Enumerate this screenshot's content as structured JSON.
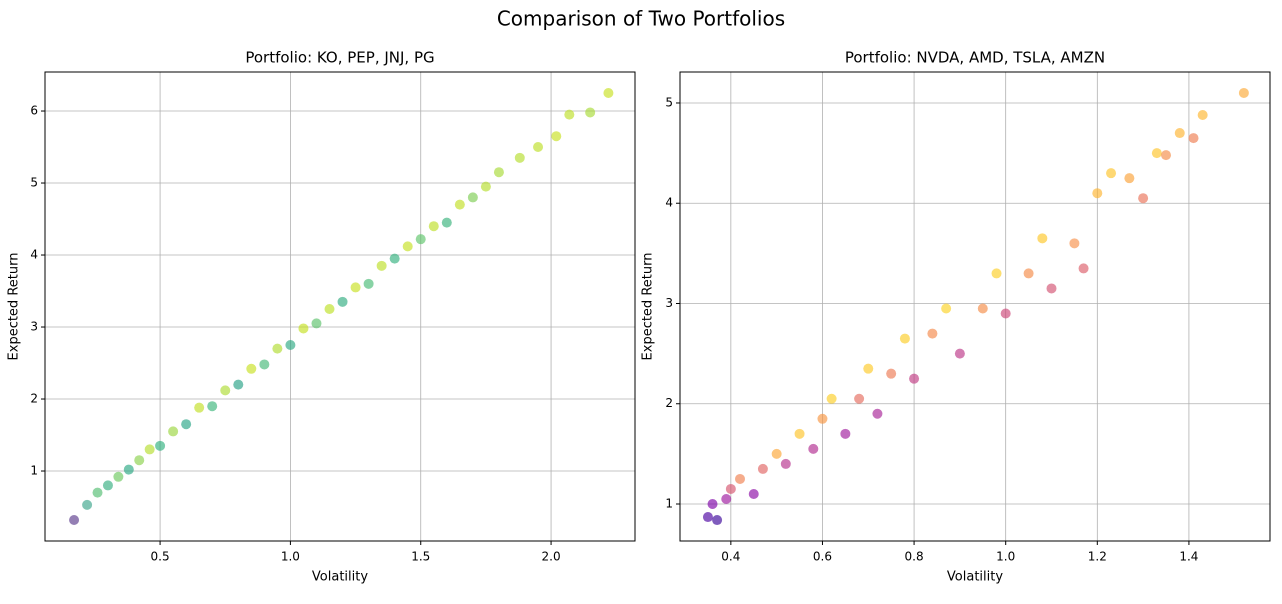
{
  "title": "Comparison of Two Portfolios",
  "chart_data": [
    {
      "type": "scatter",
      "title": "Portfolio: KO, PEP, JNJ, PG",
      "xlabel": "Volatility",
      "ylabel": "Expected Return",
      "x": [
        0.17,
        0.22,
        0.26,
        0.3,
        0.34,
        0.38,
        0.42,
        0.46,
        0.5,
        0.55,
        0.6,
        0.65,
        0.7,
        0.75,
        0.8,
        0.85,
        0.9,
        0.95,
        1.0,
        1.05,
        1.1,
        1.15,
        1.2,
        1.25,
        1.3,
        1.35,
        1.4,
        1.45,
        1.5,
        1.55,
        1.6,
        1.65,
        1.7,
        1.75,
        1.8,
        1.88,
        1.95,
        2.02,
        2.07,
        2.15,
        2.22
      ],
      "y": [
        0.32,
        0.53,
        0.7,
        0.8,
        0.92,
        1.02,
        1.15,
        1.3,
        1.35,
        1.55,
        1.65,
        1.88,
        1.9,
        2.12,
        2.2,
        2.42,
        2.48,
        2.7,
        2.75,
        2.98,
        3.05,
        3.25,
        3.35,
        3.55,
        3.6,
        3.85,
        3.95,
        4.12,
        4.22,
        4.4,
        4.45,
        4.7,
        4.8,
        4.95,
        5.15,
        5.35,
        5.5,
        5.65,
        5.95,
        5.98,
        6.25
      ],
      "colors": [
        "#5b3b8c",
        "#3ba58a",
        "#51bd70",
        "#34ae80",
        "#6cc85d",
        "#2aa883",
        "#8ad14c",
        "#b6dd2c",
        "#2fb07e",
        "#9bd63f",
        "#28a585",
        "#c2df23",
        "#3bb57a",
        "#aedb33",
        "#26a286",
        "#c8e020",
        "#45b976",
        "#b0dc2f",
        "#2ca982",
        "#c5e021",
        "#5ac26a",
        "#bde024",
        "#2fac80",
        "#c8e020",
        "#48bb74",
        "#bddf26",
        "#33b07e",
        "#c5e021",
        "#5ec46a",
        "#bddf26",
        "#38b27b",
        "#c2df23",
        "#7ccd52",
        "#b5dd2c",
        "#a8da36",
        "#b5dd2c",
        "#bddf26",
        "#c8e020",
        "#bddf26",
        "#a8da36",
        "#c8e020"
      ],
      "alpha": 0.65,
      "xlim": [
        0.0585,
        2.322
      ],
      "ylim": [
        0.028,
        6.542
      ],
      "xticks": [
        0.5,
        {
          "value": 1,
          "label": "1.0"
        },
        1.5,
        {
          "value": 2,
          "label": "2.0"
        }
      ],
      "yticks": [
        1,
        2,
        3,
        4,
        5,
        6
      ],
      "grid": true
    },
    {
      "type": "scatter",
      "title": "Portfolio: NVDA, AMD, TSLA, AMZN",
      "xlabel": "Volatility",
      "ylabel": "Expected Return",
      "x": [
        0.35,
        0.37,
        0.36,
        0.39,
        0.4,
        0.42,
        0.45,
        0.47,
        0.5,
        0.52,
        0.55,
        0.58,
        0.6,
        0.62,
        0.65,
        0.68,
        0.7,
        0.72,
        0.75,
        0.78,
        0.8,
        0.84,
        0.87,
        0.9,
        0.95,
        0.98,
        1.0,
        1.05,
        1.08,
        1.1,
        1.15,
        1.17,
        1.2,
        1.23,
        1.27,
        1.3,
        1.33,
        1.35,
        1.38,
        1.41,
        1.43,
        1.52
      ],
      "y": [
        0.87,
        0.84,
        1.0,
        1.05,
        1.15,
        1.25,
        1.1,
        1.35,
        1.5,
        1.4,
        1.7,
        1.55,
        1.85,
        2.05,
        1.7,
        2.05,
        2.35,
        1.9,
        2.3,
        2.65,
        2.25,
        2.7,
        2.95,
        2.5,
        2.95,
        3.3,
        2.9,
        3.3,
        3.65,
        3.15,
        3.6,
        3.35,
        4.1,
        4.3,
        4.25,
        4.05,
        4.5,
        4.48,
        4.7,
        4.65,
        4.88,
        5.1
      ],
      "colors": [
        "#4c02a1",
        "#3b049a",
        "#7e03a8",
        "#9c179e",
        "#d5546e",
        "#f07f4f",
        "#8a09a5",
        "#e16462",
        "#fca636",
        "#b52f8c",
        "#fdc328",
        "#b02a8f",
        "#f89540",
        "#fcce25",
        "#a01a9c",
        "#e56b5d",
        "#fdca26",
        "#a82296",
        "#ed7953",
        "#fccd25",
        "#c03a83",
        "#f48849",
        "#fcd225",
        "#bc3587",
        "#f58c46",
        "#fcce25",
        "#cc4778",
        "#f58b47",
        "#fdc627",
        "#d35171",
        "#f7904a",
        "#db5c68",
        "#fdb32f",
        "#fdc328",
        "#fba238",
        "#e97158",
        "#fdc328",
        "#f58c46",
        "#fdb32f",
        "#ee7d50",
        "#fdb52e",
        "#fca935"
      ],
      "alpha": 0.65,
      "xlim": [
        0.289,
        1.577
      ],
      "ylim": [
        0.631,
        5.309
      ],
      "xticks": [
        0.4,
        0.6,
        0.8,
        {
          "value": 1,
          "label": "1.0"
        },
        1.2,
        1.4
      ],
      "yticks": [
        1,
        2,
        3,
        4,
        5
      ],
      "grid": true
    }
  ]
}
